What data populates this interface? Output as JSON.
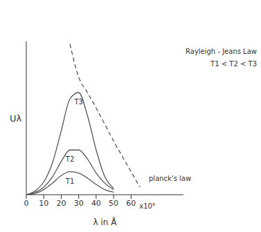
{
  "chart_data": {
    "type": "line",
    "x_label": "λ in Å",
    "x_scale_label": "x10⁸",
    "y_label": "Uλ",
    "xlim": [
      0,
      90
    ],
    "xticks": [
      0,
      10,
      20,
      30,
      40,
      50,
      60
    ],
    "ylim": [
      0,
      120
    ],
    "yticks": [],
    "tick_labels": "x",
    "grid": false,
    "annotations": [
      "T1 < T2 < T3",
      "planck's law"
    ],
    "series": [
      {
        "name": "T1",
        "color": "#555555",
        "line_style": "solid",
        "x": [
          0,
          5,
          10,
          15,
          20,
          25,
          30,
          35,
          40,
          45,
          50
        ],
        "values": [
          0,
          1,
          4,
          9,
          15,
          18,
          17,
          13,
          8,
          4,
          2
        ]
      },
      {
        "name": "T2",
        "color": "#555555",
        "line_style": "solid",
        "x": [
          0,
          5,
          10,
          15,
          20,
          25,
          30,
          35,
          40,
          45,
          50
        ],
        "values": [
          0,
          2,
          6,
          14,
          26,
          35,
          35,
          28,
          17,
          9,
          4
        ]
      },
      {
        "name": "T3",
        "color": "#555555",
        "line_style": "solid",
        "x": [
          0,
          5,
          10,
          15,
          20,
          25,
          30,
          35,
          40,
          45,
          50
        ],
        "values": [
          0,
          3,
          10,
          25,
          50,
          75,
          80,
          62,
          35,
          14,
          5
        ]
      },
      {
        "name": "Rayleigh - Jeans Law",
        "color": "#555555",
        "line_style": "dashed",
        "x": [
          25,
          30,
          35,
          40,
          45,
          50,
          55,
          60,
          65
        ],
        "values": [
          118,
          92,
          80,
          68,
          55,
          42,
          30,
          18,
          6
        ]
      }
    ]
  }
}
